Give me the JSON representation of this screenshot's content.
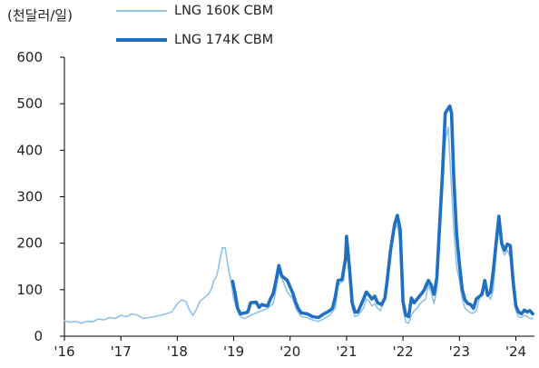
{
  "chart_data": {
    "type": "line",
    "unit": "(천달러/일)",
    "ylim": [
      0,
      600
    ],
    "yticks": [
      0,
      100,
      200,
      300,
      400,
      500,
      600
    ],
    "xlim": [
      2016.0,
      2024.33
    ],
    "xticks": [
      {
        "x": 2016,
        "label": "'16"
      },
      {
        "x": 2017,
        "label": "'17"
      },
      {
        "x": 2018,
        "label": "'18"
      },
      {
        "x": 2019,
        "label": "'19"
      },
      {
        "x": 2020,
        "label": "'20"
      },
      {
        "x": 2021,
        "label": "'21"
      },
      {
        "x": 2022,
        "label": "'22"
      },
      {
        "x": 2023,
        "label": "'23"
      },
      {
        "x": 2024,
        "label": "'24"
      }
    ],
    "legend_position": "top",
    "grid": false,
    "series": [
      {
        "name": "LNG 160K CBM",
        "color": "#8fc1ea",
        "points": [
          [
            2016.0,
            33
          ],
          [
            2016.1,
            30
          ],
          [
            2016.2,
            32
          ],
          [
            2016.3,
            28
          ],
          [
            2016.4,
            32
          ],
          [
            2016.5,
            31
          ],
          [
            2016.6,
            37
          ],
          [
            2016.7,
            35
          ],
          [
            2016.8,
            40
          ],
          [
            2016.9,
            38
          ],
          [
            2017.0,
            45
          ],
          [
            2017.1,
            42
          ],
          [
            2017.2,
            48
          ],
          [
            2017.3,
            45
          ],
          [
            2017.4,
            38
          ],
          [
            2017.5,
            40
          ],
          [
            2017.6,
            42
          ],
          [
            2017.7,
            45
          ],
          [
            2017.8,
            48
          ],
          [
            2017.9,
            52
          ],
          [
            2018.0,
            70
          ],
          [
            2018.08,
            78
          ],
          [
            2018.15,
            75
          ],
          [
            2018.22,
            55
          ],
          [
            2018.28,
            45
          ],
          [
            2018.35,
            60
          ],
          [
            2018.4,
            75
          ],
          [
            2018.45,
            80
          ],
          [
            2018.5,
            85
          ],
          [
            2018.55,
            90
          ],
          [
            2018.6,
            100
          ],
          [
            2018.65,
            120
          ],
          [
            2018.7,
            130
          ],
          [
            2018.75,
            160
          ],
          [
            2018.8,
            190
          ],
          [
            2018.85,
            190
          ],
          [
            2018.9,
            150
          ],
          [
            2018.95,
            120
          ],
          [
            2019.0,
            80
          ],
          [
            2019.05,
            60
          ],
          [
            2019.1,
            45
          ],
          [
            2019.15,
            40
          ],
          [
            2019.2,
            38
          ],
          [
            2019.3,
            45
          ],
          [
            2019.4,
            50
          ],
          [
            2019.5,
            55
          ],
          [
            2019.6,
            60
          ],
          [
            2019.7,
            70
          ],
          [
            2019.75,
            100
          ],
          [
            2019.8,
            140
          ],
          [
            2019.85,
            125
          ],
          [
            2019.9,
            110
          ],
          [
            2019.95,
            95
          ],
          [
            2020.05,
            80
          ],
          [
            2020.1,
            60
          ],
          [
            2020.15,
            50
          ],
          [
            2020.2,
            42
          ],
          [
            2020.3,
            40
          ],
          [
            2020.4,
            35
          ],
          [
            2020.5,
            32
          ],
          [
            2020.6,
            38
          ],
          [
            2020.7,
            45
          ],
          [
            2020.8,
            60
          ],
          [
            2020.85,
            110
          ],
          [
            2020.9,
            115
          ],
          [
            2020.95,
            120
          ],
          [
            2021.0,
            195
          ],
          [
            2021.05,
            140
          ],
          [
            2021.1,
            60
          ],
          [
            2021.15,
            42
          ],
          [
            2021.2,
            45
          ],
          [
            2021.3,
            60
          ],
          [
            2021.35,
            80
          ],
          [
            2021.4,
            75
          ],
          [
            2021.45,
            65
          ],
          [
            2021.5,
            70
          ],
          [
            2021.55,
            60
          ],
          [
            2021.6,
            55
          ],
          [
            2021.65,
            70
          ],
          [
            2021.7,
            90
          ],
          [
            2021.75,
            140
          ],
          [
            2021.8,
            200
          ],
          [
            2021.85,
            230
          ],
          [
            2021.9,
            240
          ],
          [
            2021.95,
            200
          ],
          [
            2022.0,
            60
          ],
          [
            2022.05,
            30
          ],
          [
            2022.1,
            28
          ],
          [
            2022.15,
            45
          ],
          [
            2022.2,
            55
          ],
          [
            2022.25,
            60
          ],
          [
            2022.3,
            70
          ],
          [
            2022.35,
            75
          ],
          [
            2022.4,
            80
          ],
          [
            2022.45,
            110
          ],
          [
            2022.5,
            95
          ],
          [
            2022.55,
            70
          ],
          [
            2022.6,
            100
          ],
          [
            2022.65,
            200
          ],
          [
            2022.7,
            310
          ],
          [
            2022.75,
            420
          ],
          [
            2022.8,
            450
          ],
          [
            2022.85,
            340
          ],
          [
            2022.9,
            230
          ],
          [
            2022.95,
            150
          ],
          [
            2023.0,
            120
          ],
          [
            2023.05,
            80
          ],
          [
            2023.1,
            60
          ],
          [
            2023.15,
            55
          ],
          [
            2023.2,
            50
          ],
          [
            2023.25,
            50
          ],
          [
            2023.3,
            55
          ],
          [
            2023.35,
            80
          ],
          [
            2023.4,
            100
          ],
          [
            2023.45,
            110
          ],
          [
            2023.5,
            90
          ],
          [
            2023.55,
            80
          ],
          [
            2023.6,
            100
          ],
          [
            2023.65,
            180
          ],
          [
            2023.7,
            235
          ],
          [
            2023.75,
            190
          ],
          [
            2023.8,
            175
          ],
          [
            2023.85,
            185
          ],
          [
            2023.9,
            170
          ],
          [
            2023.95,
            100
          ],
          [
            2024.0,
            55
          ],
          [
            2024.05,
            42
          ],
          [
            2024.1,
            40
          ],
          [
            2024.15,
            45
          ],
          [
            2024.2,
            42
          ],
          [
            2024.25,
            38
          ],
          [
            2024.3,
            38
          ]
        ]
      },
      {
        "name": "LNG 174K CBM",
        "color": "#1f6fc3",
        "points": [
          [
            2018.98,
            118
          ],
          [
            2019.02,
            95
          ],
          [
            2019.07,
            60
          ],
          [
            2019.12,
            48
          ],
          [
            2019.2,
            50
          ],
          [
            2019.25,
            52
          ],
          [
            2019.3,
            72
          ],
          [
            2019.4,
            73
          ],
          [
            2019.45,
            62
          ],
          [
            2019.5,
            68
          ],
          [
            2019.6,
            65
          ],
          [
            2019.65,
            80
          ],
          [
            2019.7,
            92
          ],
          [
            2019.75,
            120
          ],
          [
            2019.8,
            152
          ],
          [
            2019.85,
            130
          ],
          [
            2019.95,
            120
          ],
          [
            2020.05,
            92
          ],
          [
            2020.1,
            72
          ],
          [
            2020.15,
            58
          ],
          [
            2020.2,
            50
          ],
          [
            2020.3,
            48
          ],
          [
            2020.4,
            42
          ],
          [
            2020.5,
            40
          ],
          [
            2020.6,
            48
          ],
          [
            2020.7,
            55
          ],
          [
            2020.75,
            60
          ],
          [
            2020.8,
            85
          ],
          [
            2020.85,
            120
          ],
          [
            2020.92,
            122
          ],
          [
            2020.98,
            165
          ],
          [
            2021.0,
            215
          ],
          [
            2021.05,
            150
          ],
          [
            2021.1,
            72
          ],
          [
            2021.15,
            52
          ],
          [
            2021.2,
            52
          ],
          [
            2021.3,
            80
          ],
          [
            2021.35,
            95
          ],
          [
            2021.4,
            88
          ],
          [
            2021.45,
            80
          ],
          [
            2021.5,
            86
          ],
          [
            2021.55,
            72
          ],
          [
            2021.62,
            68
          ],
          [
            2021.68,
            82
          ],
          [
            2021.72,
            120
          ],
          [
            2021.78,
            185
          ],
          [
            2021.85,
            240
          ],
          [
            2021.9,
            260
          ],
          [
            2021.95,
            230
          ],
          [
            2022.0,
            75
          ],
          [
            2022.05,
            45
          ],
          [
            2022.1,
            42
          ],
          [
            2022.15,
            82
          ],
          [
            2022.2,
            72
          ],
          [
            2022.25,
            80
          ],
          [
            2022.32,
            90
          ],
          [
            2022.38,
            100
          ],
          [
            2022.42,
            112
          ],
          [
            2022.45,
            120
          ],
          [
            2022.5,
            110
          ],
          [
            2022.55,
            90
          ],
          [
            2022.6,
            125
          ],
          [
            2022.65,
            240
          ],
          [
            2022.7,
            350
          ],
          [
            2022.75,
            480
          ],
          [
            2022.8,
            490
          ],
          [
            2022.83,
            495
          ],
          [
            2022.86,
            480
          ],
          [
            2022.9,
            340
          ],
          [
            2022.95,
            220
          ],
          [
            2023.0,
            155
          ],
          [
            2023.05,
            100
          ],
          [
            2023.1,
            78
          ],
          [
            2023.15,
            70
          ],
          [
            2023.2,
            68
          ],
          [
            2023.25,
            60
          ],
          [
            2023.3,
            80
          ],
          [
            2023.35,
            85
          ],
          [
            2023.4,
            90
          ],
          [
            2023.45,
            120
          ],
          [
            2023.5,
            88
          ],
          [
            2023.55,
            95
          ],
          [
            2023.6,
            140
          ],
          [
            2023.65,
            200
          ],
          [
            2023.7,
            258
          ],
          [
            2023.75,
            200
          ],
          [
            2023.8,
            185
          ],
          [
            2023.85,
            198
          ],
          [
            2023.9,
            195
          ],
          [
            2023.95,
            120
          ],
          [
            2024.0,
            65
          ],
          [
            2024.05,
            52
          ],
          [
            2024.1,
            48
          ],
          [
            2024.15,
            56
          ],
          [
            2024.2,
            52
          ],
          [
            2024.25,
            55
          ],
          [
            2024.3,
            48
          ]
        ]
      }
    ]
  }
}
